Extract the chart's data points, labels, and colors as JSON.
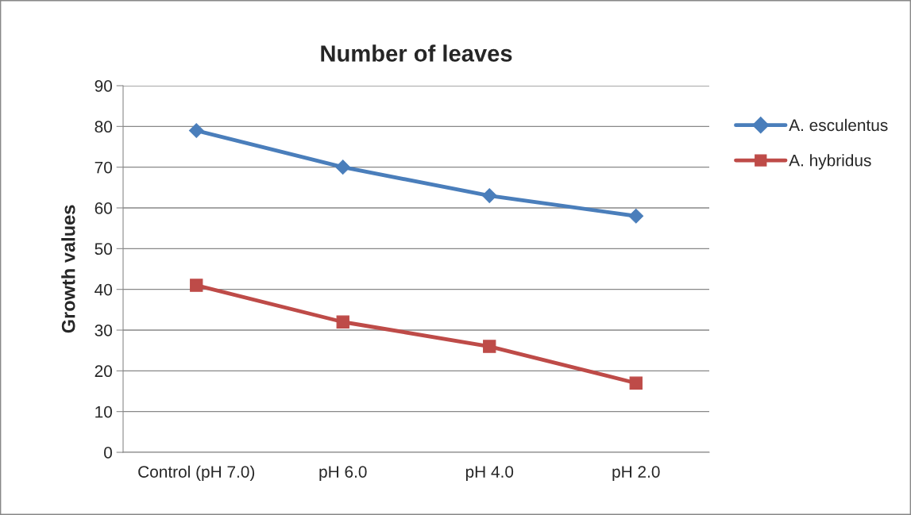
{
  "chart_data": {
    "type": "line",
    "title": "Number of leaves",
    "ylabel": "Growth values",
    "categories": [
      "Control (pH 7.0)",
      "pH 6.0",
      "pH 4.0",
      "pH 2.0"
    ],
    "series": [
      {
        "name": "A. esculentus",
        "color": "#4a7ebb",
        "marker": "diamond",
        "values": [
          79,
          70,
          63,
          58
        ]
      },
      {
        "name": "A. hybridus",
        "color": "#be4b48",
        "marker": "square",
        "values": [
          41,
          32,
          26,
          17
        ]
      }
    ],
    "ylim": [
      0,
      90
    ],
    "yticks": [
      0,
      10,
      20,
      30,
      40,
      50,
      60,
      70,
      80,
      90
    ],
    "grid": "y",
    "legend": "right"
  }
}
